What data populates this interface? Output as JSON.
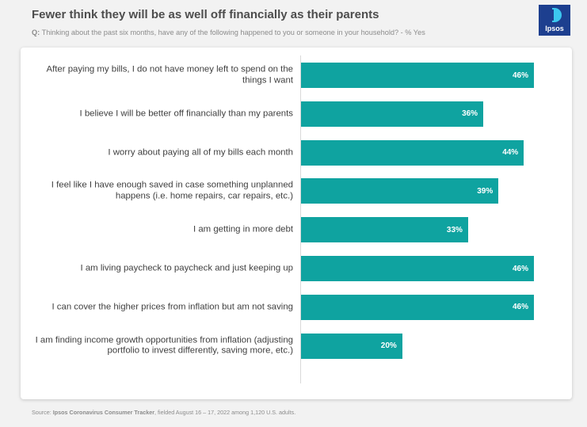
{
  "header": {
    "title": "Fewer think they will be as well off financially as their parents",
    "question_prefix": "Q:",
    "question_text": " Thinking about the past six months, have any of the following happened to you or someone in your household? - % Yes"
  },
  "logo": {
    "text": "Ipsos",
    "colors": {
      "background": "#1d3f8f",
      "accent": "#3cc8f0"
    }
  },
  "chart_data": {
    "type": "bar",
    "orientation": "horizontal",
    "title": "Fewer think they will be as well off financially as their parents",
    "xlabel": "",
    "ylabel": "",
    "xlim": [
      0,
      50
    ],
    "value_suffix": "%",
    "bar_color": "#0fa3a0",
    "categories": [
      "After paying my bills, I do not have money left to spend on the things I want",
      "I believe I will be better off financially than my parents",
      "I worry about paying all of my bills each month",
      "I feel like I have enough saved in case something unplanned happens (i.e. home repairs, car repairs, etc.)",
      "I am getting in more debt",
      "I am living paycheck to paycheck and just keeping up",
      "I can cover the higher prices from inflation but am not saving",
      "I am finding income growth opportunities from inflation (adjusting portfolio to invest differently, saving more, etc.)"
    ],
    "values": [
      46,
      36,
      44,
      39,
      33,
      46,
      46,
      20
    ],
    "value_labels": [
      "46%",
      "36%",
      "44%",
      "39%",
      "33%",
      "46%",
      "46%",
      "20%"
    ]
  },
  "footer": {
    "source_prefix": "Source: ",
    "source_name": "Ipsos Coronavirus Consumer Tracker",
    "source_rest": ", fielded August 16 – 17, 2022 among 1,120 U.S. adults."
  }
}
